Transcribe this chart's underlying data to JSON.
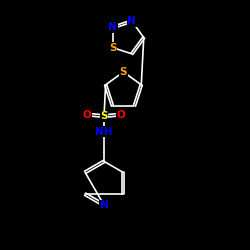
{
  "bg_color": "#000000",
  "bond_color": "#ffffff",
  "font_size": 7.5,
  "line_width": 1.2,
  "figsize": [
    2.5,
    2.5
  ],
  "dpi": 100,
  "colors": {
    "S_thiadiazole": "#ffa500",
    "S_thiophene": "#ffa500",
    "S_sulfonamide": "#ffff00",
    "N": "#0000ff",
    "O": "#ff0000",
    "NH": "#0000ff"
  },
  "xlim": [
    3.0,
    7.5
  ],
  "ylim": [
    1.5,
    9.5
  ]
}
